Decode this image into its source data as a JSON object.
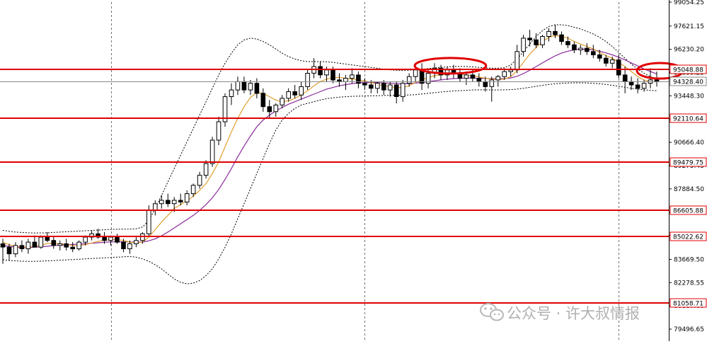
{
  "watermark": {
    "text": "公众号 · 许大叔情报"
  },
  "colors": {
    "hline": "#e00000",
    "bull": "#ffffff",
    "bear": "#000000",
    "candle_edge": "#000000",
    "ma_fast": "#e0a030",
    "ma_slow": "#8a2a9a",
    "band": "#000000",
    "current": "#8a8a8a"
  },
  "chart_data": {
    "type": "candlestick",
    "title": "",
    "xlabel": "",
    "ylabel": "",
    "ylim": [
      79496.65,
      99054.25
    ],
    "y_ticks": [
      "99054.25",
      "97621.15",
      "96230.20",
      "94839.25",
      "93448.30",
      "92057.35",
      "90666.40",
      "89275.45",
      "87884.50",
      "86493.55",
      "85102.60",
      "83669.50",
      "82278.55",
      "80887.60",
      "79496.65"
    ],
    "levels": [
      {
        "value": 95048.88,
        "label": "95048.88"
      },
      {
        "value": 92110.64,
        "label": "92110.64"
      },
      {
        "value": 89479.75,
        "label": "89479.75"
      },
      {
        "value": 86605.88,
        "label": "86605.88"
      },
      {
        "value": 85022.62,
        "label": "85022.62"
      },
      {
        "value": 81058.71,
        "label": "81058.71"
      }
    ],
    "current_price": {
      "value": 94328.4,
      "label": "94328.40"
    },
    "candles": [
      [
        84600,
        84900,
        83400,
        84400
      ],
      [
        84400,
        84600,
        83600,
        84000
      ],
      [
        84000,
        84700,
        83800,
        84500
      ],
      [
        84500,
        84800,
        84100,
        84300
      ],
      [
        84300,
        84900,
        84000,
        84700
      ],
      [
        84700,
        85100,
        84400,
        84400
      ],
      [
        84400,
        85100,
        84300,
        85000
      ],
      [
        85000,
        85300,
        84700,
        84800
      ],
      [
        84800,
        85000,
        84300,
        84500
      ],
      [
        84500,
        84800,
        84200,
        84600
      ],
      [
        84600,
        84900,
        84200,
        84400
      ],
      [
        84400,
        84700,
        84100,
        84300
      ],
      [
        84300,
        84800,
        84200,
        84700
      ],
      [
        84700,
        85100,
        84500,
        85000
      ],
      [
        85000,
        85400,
        84800,
        85200
      ],
      [
        85200,
        85500,
        84900,
        85000
      ],
      [
        85000,
        85300,
        84600,
        84800
      ],
      [
        84800,
        85100,
        84500,
        85000
      ],
      [
        85000,
        85200,
        84600,
        84700
      ],
      [
        84700,
        84900,
        84100,
        84300
      ],
      [
        84300,
        84800,
        84000,
        84600
      ],
      [
        84600,
        85000,
        84400,
        84800
      ],
      [
        84800,
        85300,
        84600,
        85200
      ],
      [
        85200,
        86900,
        85000,
        86600
      ],
      [
        86600,
        87200,
        86300,
        87000
      ],
      [
        87000,
        87500,
        86700,
        87200
      ],
      [
        87200,
        87600,
        86800,
        87000
      ],
      [
        87000,
        87400,
        86500,
        87200
      ],
      [
        87200,
        87600,
        86900,
        87100
      ],
      [
        87100,
        87800,
        86900,
        87600
      ],
      [
        87600,
        88200,
        87400,
        88100
      ],
      [
        88100,
        88900,
        87900,
        88700
      ],
      [
        88700,
        89600,
        88500,
        89400
      ],
      [
        89400,
        91000,
        89200,
        90800
      ],
      [
        90800,
        92200,
        90500,
        91900
      ],
      [
        91900,
        93600,
        91600,
        93400
      ],
      [
        93400,
        94200,
        92900,
        93800
      ],
      [
        93800,
        94600,
        93500,
        94300
      ],
      [
        94300,
        94600,
        93600,
        93800
      ],
      [
        93800,
        94400,
        93500,
        94200
      ],
      [
        94200,
        94500,
        93300,
        93600
      ],
      [
        93600,
        93900,
        92500,
        92800
      ],
      [
        92800,
        93200,
        92100,
        92500
      ],
      [
        92500,
        93000,
        92200,
        92900
      ],
      [
        92900,
        93500,
        92700,
        93300
      ],
      [
        93300,
        93900,
        93100,
        93700
      ],
      [
        93700,
        94100,
        93300,
        93500
      ],
      [
        93500,
        94300,
        93200,
        94000
      ],
      [
        94000,
        95000,
        93800,
        94800
      ],
      [
        94800,
        95700,
        94500,
        95200
      ],
      [
        95200,
        95500,
        94500,
        94700
      ],
      [
        94700,
        95200,
        94300,
        95000
      ],
      [
        95000,
        95200,
        94200,
        94400
      ],
      [
        94400,
        94800,
        94000,
        94300
      ],
      [
        94300,
        94700,
        93800,
        94500
      ],
      [
        94500,
        95100,
        94200,
        94700
      ],
      [
        94700,
        94900,
        93900,
        94200
      ],
      [
        94200,
        94500,
        93800,
        94100
      ],
      [
        94100,
        94400,
        93600,
        93900
      ],
      [
        93900,
        94300,
        93600,
        94200
      ],
      [
        94200,
        94400,
        93500,
        93800
      ],
      [
        93800,
        94300,
        93400,
        94100
      ],
      [
        94100,
        94300,
        93000,
        93400
      ],
      [
        93400,
        94400,
        93100,
        94200
      ],
      [
        94200,
        94800,
        94000,
        94600
      ],
      [
        94600,
        95300,
        94300,
        95000
      ],
      [
        95000,
        95400,
        93800,
        94200
      ],
      [
        94200,
        95100,
        93900,
        94800
      ],
      [
        94800,
        95400,
        94500,
        95100
      ],
      [
        95100,
        95300,
        94400,
        94700
      ],
      [
        94700,
        95200,
        94400,
        95000
      ],
      [
        95000,
        95300,
        94500,
        94800
      ],
      [
        94800,
        95100,
        94300,
        94500
      ],
      [
        94500,
        94900,
        94100,
        94700
      ],
      [
        94700,
        95000,
        94300,
        94500
      ],
      [
        94500,
        94800,
        94000,
        94300
      ],
      [
        94300,
        94600,
        93700,
        94000
      ],
      [
        94000,
        94600,
        93100,
        94400
      ],
      [
        94400,
        94700,
        94000,
        94600
      ],
      [
        94600,
        95100,
        94400,
        94900
      ],
      [
        94900,
        95200,
        94600,
        95000
      ],
      [
        95000,
        96500,
        94800,
        96100
      ],
      [
        96100,
        97100,
        95800,
        96900
      ],
      [
        96900,
        97400,
        96400,
        96800
      ],
      [
        96800,
        97200,
        96300,
        96500
      ],
      [
        96500,
        97100,
        96300,
        97000
      ],
      [
        97000,
        97500,
        96700,
        97300
      ],
      [
        97300,
        97700,
        96900,
        97100
      ],
      [
        97100,
        97300,
        96500,
        96700
      ],
      [
        96700,
        97000,
        96300,
        96500
      ],
      [
        96500,
        96700,
        96000,
        96200
      ],
      [
        96200,
        96500,
        95900,
        96300
      ],
      [
        96300,
        96600,
        95900,
        96100
      ],
      [
        96100,
        96500,
        95700,
        95900
      ],
      [
        95900,
        96200,
        95500,
        95700
      ],
      [
        95700,
        95900,
        95200,
        95400
      ],
      [
        95400,
        95800,
        95100,
        95600
      ],
      [
        95600,
        95900,
        94500,
        94700
      ],
      [
        94700,
        95200,
        93600,
        94300
      ],
      [
        94300,
        94600,
        93800,
        94100
      ],
      [
        94100,
        94500,
        93600,
        93900
      ],
      [
        93900,
        94400,
        93700,
        94200
      ],
      [
        94200,
        95100,
        93900,
        94400
      ],
      [
        94400,
        94900,
        94000,
        94300
      ]
    ],
    "ma_fast": [
      84700,
      84550,
      84450,
      84400,
      84400,
      84450,
      84500,
      84620,
      84650,
      84600,
      84560,
      84500,
      84480,
      84550,
      84650,
      84750,
      84800,
      84850,
      84850,
      84800,
      84700,
      84650,
      84700,
      85000,
      85450,
      85900,
      86300,
      86700,
      86950,
      87150,
      87450,
      87800,
      88200,
      88800,
      89500,
      90400,
      91300,
      92100,
      92800,
      93350,
      93650,
      93600,
      93400,
      93200,
      93100,
      93150,
      93300,
      93500,
      93750,
      94050,
      94300,
      94450,
      94550,
      94550,
      94500,
      94450,
      94400,
      94350,
      94250,
      94150,
      94050,
      94000,
      93950,
      93950,
      94050,
      94250,
      94400,
      94550,
      94650,
      94700,
      94750,
      94780,
      94750,
      94700,
      94650,
      94580,
      94500,
      94450,
      94420,
      94450,
      94600,
      94950,
      95450,
      95950,
      96350,
      96700,
      96950,
      97050,
      97000,
      96900,
      96700,
      96550,
      96400,
      96250,
      96050,
      95850,
      95700,
      95450,
      95200,
      94900,
      94600,
      94400,
      94300,
      94280
    ],
    "ma_slow": [
      84500,
      84450,
      84400,
      84380,
      84380,
      84400,
      84420,
      84450,
      84500,
      84520,
      84540,
      84560,
      84580,
      84600,
      84630,
      84660,
      84690,
      84710,
      84720,
      84720,
      84710,
      84700,
      84700,
      84780,
      84900,
      85080,
      85300,
      85550,
      85800,
      86050,
      86300,
      86600,
      86950,
      87350,
      87850,
      88450,
      89100,
      89800,
      90450,
      91050,
      91600,
      92000,
      92300,
      92550,
      92750,
      92950,
      93100,
      93250,
      93400,
      93550,
      93700,
      93850,
      93950,
      94050,
      94120,
      94180,
      94220,
      94240,
      94250,
      94240,
      94220,
      94200,
      94180,
      94170,
      94180,
      94210,
      94250,
      94300,
      94350,
      94400,
      94450,
      94480,
      94500,
      94510,
      94510,
      94500,
      94490,
      94480,
      94470,
      94480,
      94520,
      94620,
      94780,
      94980,
      95200,
      95420,
      95640,
      95840,
      96000,
      96120,
      96200,
      96240,
      96240,
      96200,
      96120,
      96020,
      95900,
      95760,
      95600,
      95420,
      95240,
      95060,
      94900,
      94760
    ],
    "band_upper": [
      85400,
      85350,
      85300,
      85280,
      85260,
      85250,
      85250,
      85260,
      85280,
      85300,
      85320,
      85340,
      85360,
      85380,
      85400,
      85420,
      85440,
      85460,
      85470,
      85480,
      85480,
      85500,
      85600,
      86000,
      86700,
      87500,
      88300,
      89100,
      89900,
      90700,
      91500,
      92300,
      93100,
      93900,
      94700,
      95400,
      96000,
      96500,
      96800,
      96900,
      96850,
      96700,
      96500,
      96250,
      96000,
      95800,
      95650,
      95550,
      95500,
      95500,
      95500,
      95480,
      95450,
      95400,
      95350,
      95300,
      95250,
      95200,
      95150,
      95100,
      95050,
      95000,
      94980,
      94970,
      94980,
      95000,
      95040,
      95080,
      95120,
      95150,
      95180,
      95200,
      95210,
      95200,
      95180,
      95150,
      95120,
      95100,
      95100,
      95130,
      95300,
      95650,
      96100,
      96550,
      97000,
      97350,
      97600,
      97700,
      97700,
      97650,
      97550,
      97450,
      97300,
      97150,
      96950,
      96700,
      96400,
      96050,
      95700,
      95350,
      95050,
      94800,
      94600,
      94450
    ],
    "band_lower": [
      83650,
      83600,
      83580,
      83560,
      83550,
      83550,
      83560,
      83580,
      83600,
      83620,
      83640,
      83660,
      83680,
      83700,
      83720,
      83740,
      83760,
      83780,
      83800,
      83820,
      83850,
      83800,
      83700,
      83550,
      83350,
      83100,
      82800,
      82500,
      82300,
      82200,
      82250,
      82400,
      82700,
      83100,
      83700,
      84400,
      85200,
      86100,
      87000,
      87900,
      88800,
      89700,
      90600,
      91400,
      92000,
      92400,
      92700,
      92900,
      93000,
      93100,
      93200,
      93280,
      93330,
      93370,
      93400,
      93420,
      93430,
      93440,
      93450,
      93460,
      93470,
      93480,
      93480,
      93490,
      93500,
      93520,
      93560,
      93600,
      93640,
      93680,
      93710,
      93740,
      93760,
      93780,
      93800,
      93810,
      93810,
      93800,
      93800,
      93810,
      93820,
      93850,
      93900,
      93960,
      94020,
      94080,
      94130,
      94170,
      94200,
      94220,
      94230,
      94230,
      94220,
      94200,
      94170,
      94130,
      94080,
      94020,
      93960,
      93900,
      93850,
      93810,
      93780,
      93760
    ],
    "highlights": [
      {
        "from_index": 66,
        "to_index": 75,
        "value": 95250
      },
      {
        "from_index": 101,
        "to_index": 106,
        "value": 94950
      }
    ],
    "x_grid_indices": [
      17,
      57,
      97
    ]
  }
}
